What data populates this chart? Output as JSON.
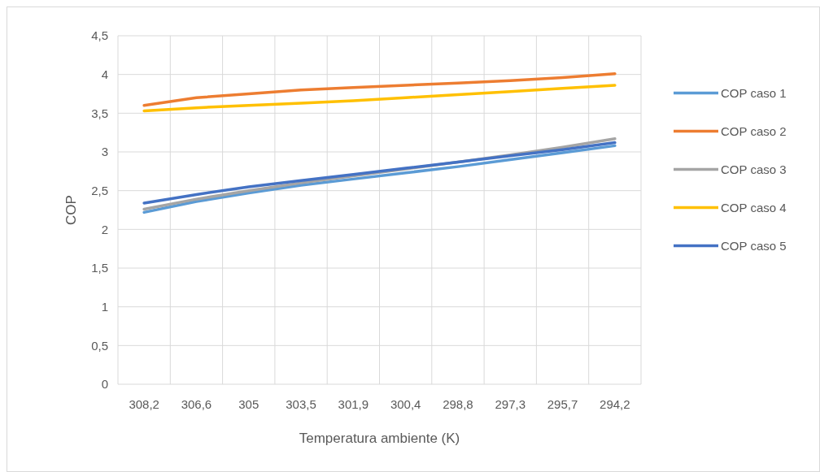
{
  "chart_data": {
    "type": "line",
    "xlabel": "Temperatura ambiente (K)",
    "ylabel": "COP",
    "categories": [
      "308,2",
      "306,6",
      "305",
      "303,5",
      "301,9",
      "300,4",
      "298,8",
      "297,3",
      "295,7",
      "294,2"
    ],
    "series": [
      {
        "name": "COP caso 1",
        "color": "#5b9bd5",
        "values": [
          2.22,
          2.36,
          2.47,
          2.57,
          2.65,
          2.73,
          2.81,
          2.9,
          2.99,
          3.08
        ]
      },
      {
        "name": "COP caso 2",
        "color": "#ed7d31",
        "values": [
          3.6,
          3.7,
          3.75,
          3.8,
          3.83,
          3.86,
          3.89,
          3.92,
          3.96,
          4.01
        ]
      },
      {
        "name": "COP caso 3",
        "color": "#a5a5a5",
        "values": [
          2.26,
          2.39,
          2.5,
          2.6,
          2.69,
          2.78,
          2.87,
          2.96,
          3.06,
          3.17
        ]
      },
      {
        "name": "COP caso 4",
        "color": "#ffc000",
        "values": [
          3.53,
          3.57,
          3.6,
          3.63,
          3.66,
          3.7,
          3.74,
          3.78,
          3.82,
          3.86
        ]
      },
      {
        "name": "COP caso 5",
        "color": "#4472c4",
        "values": [
          2.34,
          2.45,
          2.55,
          2.63,
          2.71,
          2.79,
          2.87,
          2.95,
          3.03,
          3.12
        ]
      }
    ],
    "ylim": [
      0,
      4.5
    ],
    "yticks": [
      0,
      {
        "value": 0.5,
        "label": "0,5"
      },
      1,
      {
        "value": 1.5,
        "label": "1,5"
      },
      2,
      {
        "value": 2.5,
        "label": "2,5"
      },
      3,
      {
        "value": 3.5,
        "label": "3,5"
      },
      4,
      {
        "value": 4.5,
        "label": "4,5"
      }
    ],
    "grid": true,
    "legend": "right",
    "marker": "none",
    "line_style": "solid"
  }
}
